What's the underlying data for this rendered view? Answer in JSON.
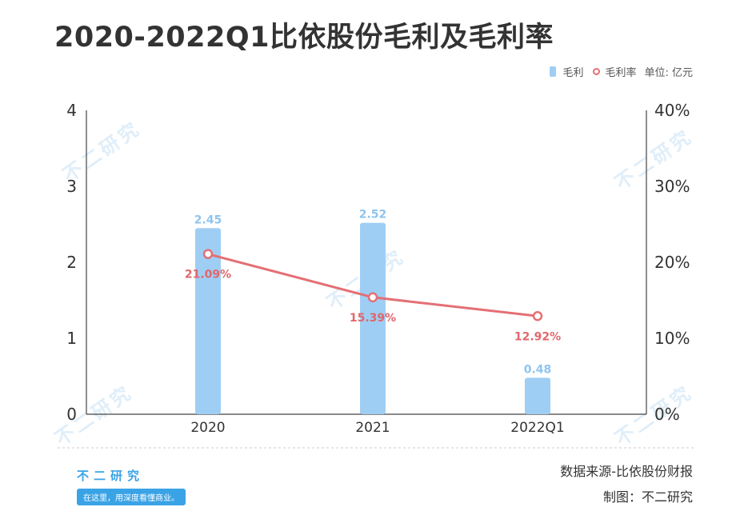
{
  "title": "2020-2022Q1比依股份毛利及毛利率",
  "legend": {
    "bar_label": "毛利",
    "line_label": "毛利率",
    "unit": "单位: 亿元"
  },
  "footer": {
    "source": "数据来源-比依股份财报",
    "maker": "制图：不二研究"
  },
  "brand": {
    "name": "不二研究",
    "slogan": "在这里，用深度看懂商业。"
  },
  "watermark": "不二研究",
  "colors": {
    "bar": "#9fcef5",
    "line": "#e46f74",
    "bar_label": "#8ec4ef",
    "line_label": "#e0676c",
    "axis": "#444444",
    "text": "#333333"
  },
  "chart_data": {
    "type": "bar",
    "categories": [
      "2020",
      "2021",
      "2022Q1"
    ],
    "series": [
      {
        "name": "毛利",
        "type": "bar",
        "axis": "left",
        "values": [
          2.45,
          2.52,
          0.48
        ],
        "labels": [
          "2.45",
          "2.52",
          "0.48"
        ]
      },
      {
        "name": "毛利率",
        "type": "line",
        "axis": "right",
        "values": [
          21.09,
          15.39,
          12.92
        ],
        "labels": [
          "21.09%",
          "15.39%",
          "12.92%"
        ]
      }
    ],
    "y_left": {
      "ylim": [
        0,
        4
      ],
      "ticks": [
        "0",
        "1",
        "2",
        "3",
        "4"
      ]
    },
    "y_right": {
      "ylim": [
        0,
        40
      ],
      "ticks": [
        "0%",
        "10%",
        "20%",
        "30%",
        "40%"
      ]
    },
    "grid": false,
    "legend_position": "top-right"
  }
}
